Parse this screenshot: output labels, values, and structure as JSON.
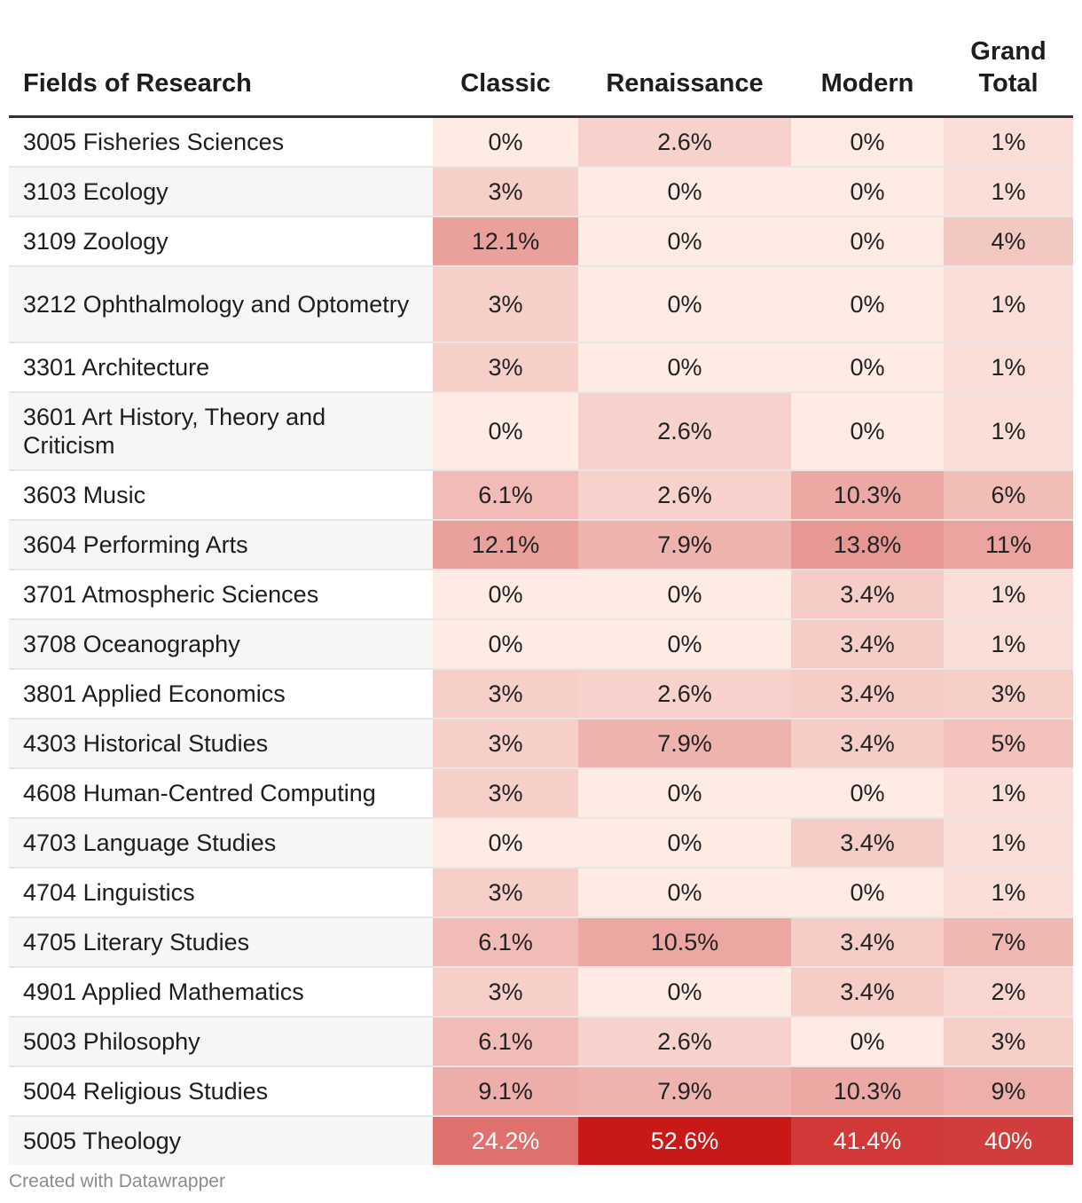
{
  "chart_data": {
    "type": "table",
    "columns": [
      "Fields of Research",
      "Classic",
      "Renaissance",
      "Modern",
      "Grand Total"
    ],
    "rows": [
      {
        "field": "3005 Fisheries Sciences",
        "values": [
          "0%",
          "2.6%",
          "0%",
          "1%"
        ]
      },
      {
        "field": "3103 Ecology",
        "values": [
          "3%",
          "0%",
          "0%",
          "1%"
        ]
      },
      {
        "field": "3109 Zoology",
        "values": [
          "12.1%",
          "0%",
          "0%",
          "4%"
        ]
      },
      {
        "field": "3212 Ophthalmology and Optometry",
        "values": [
          "3%",
          "0%",
          "0%",
          "1%"
        ]
      },
      {
        "field": "3301 Architecture",
        "values": [
          "3%",
          "0%",
          "0%",
          "1%"
        ]
      },
      {
        "field": "3601 Art History, Theory and Criticism",
        "values": [
          "0%",
          "2.6%",
          "0%",
          "1%"
        ]
      },
      {
        "field": "3603 Music",
        "values": [
          "6.1%",
          "2.6%",
          "10.3%",
          "6%"
        ]
      },
      {
        "field": "3604 Performing Arts",
        "values": [
          "12.1%",
          "7.9%",
          "13.8%",
          "11%"
        ]
      },
      {
        "field": "3701 Atmospheric Sciences",
        "values": [
          "0%",
          "0%",
          "3.4%",
          "1%"
        ]
      },
      {
        "field": "3708 Oceanography",
        "values": [
          "0%",
          "0%",
          "3.4%",
          "1%"
        ]
      },
      {
        "field": "3801 Applied Economics",
        "values": [
          "3%",
          "2.6%",
          "3.4%",
          "3%"
        ]
      },
      {
        "field": "4303 Historical Studies",
        "values": [
          "3%",
          "7.9%",
          "3.4%",
          "5%"
        ]
      },
      {
        "field": "4608 Human-Centred Computing",
        "values": [
          "3%",
          "0%",
          "0%",
          "1%"
        ]
      },
      {
        "field": "4703 Language Studies",
        "values": [
          "0%",
          "0%",
          "3.4%",
          "1%"
        ]
      },
      {
        "field": "4704 Linguistics",
        "values": [
          "3%",
          "0%",
          "0%",
          "1%"
        ]
      },
      {
        "field": "4705 Literary Studies",
        "values": [
          "6.1%",
          "10.5%",
          "3.4%",
          "7%"
        ]
      },
      {
        "field": "4901 Applied Mathematics",
        "values": [
          "3%",
          "0%",
          "3.4%",
          "2%"
        ]
      },
      {
        "field": "5003 Philosophy",
        "values": [
          "6.1%",
          "2.6%",
          "0%",
          "3%"
        ]
      },
      {
        "field": "5004 Religious Studies",
        "values": [
          "9.1%",
          "7.9%",
          "10.3%",
          "9%"
        ]
      },
      {
        "field": "5005 Theology",
        "values": [
          "24.2%",
          "52.6%",
          "41.4%",
          "40%"
        ]
      }
    ],
    "color_scale": {
      "low_color": "#fdebe4",
      "high_color": "#c81818",
      "light_text_color": "#ffffff",
      "dark_text_color": "#222222"
    }
  },
  "footer": {
    "credit": "Created with Datawrapper"
  }
}
